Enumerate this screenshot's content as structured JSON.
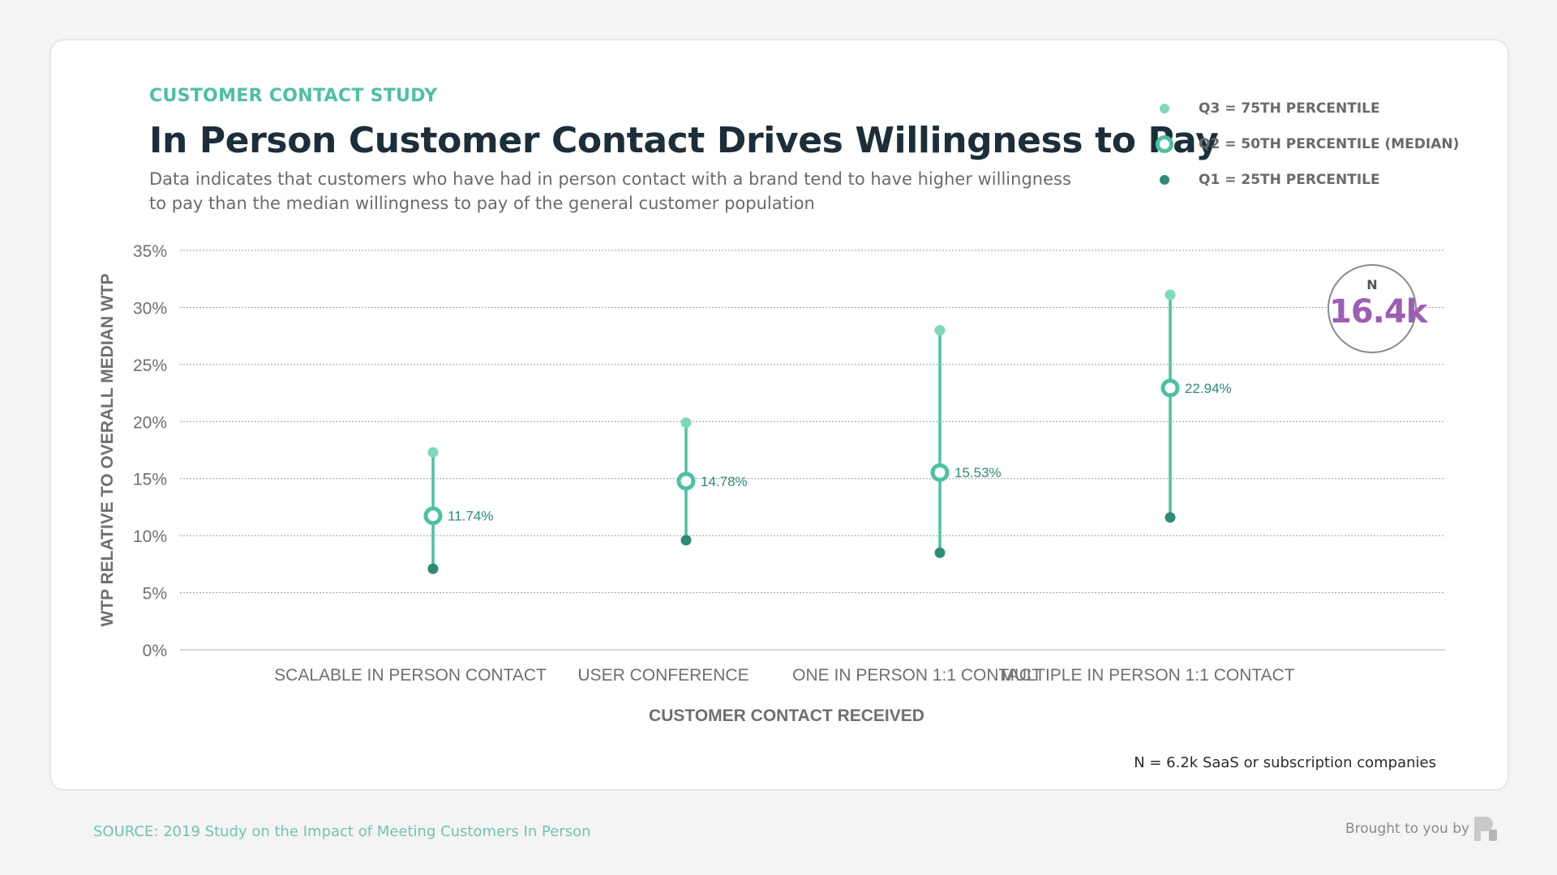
{
  "header": {
    "eyebrow": "CUSTOMER CONTACT STUDY",
    "title": "In Person Customer Contact Drives Willingness to Pay",
    "subtitle": "Data indicates that customers who have had in person contact with a brand tend to have higher willingness to pay than the median willingness to pay of the general customer population"
  },
  "legend": {
    "q3": "Q3 = 75TH PERCENTILE",
    "q2": "Q2 = 50TH PERCENTILE (MEDIAN)",
    "q1": "Q1 = 25TH PERCENTILE"
  },
  "badge": {
    "label": "N",
    "value": "16.4k"
  },
  "note": "N = 6.2k SaaS or subscription companies",
  "footer": {
    "source": "SOURCE: 2019 Study on the Impact of Meeting Customers In Person",
    "brought": "Brought to you by"
  },
  "colors": {
    "q3": "#7fd8bd",
    "q2": "#4dc0a3",
    "q1": "#2e8b75",
    "label": "#2e8b75",
    "accent_purple": "#9b5fb3"
  },
  "chart_data": {
    "type": "range-dot",
    "title": "In Person Customer Contact Drives Willingness to Pay",
    "xlabel": "CUSTOMER CONTACT RECEIVED",
    "ylabel": "WTP RELATIVE TO OVERALL MEDIAN WTP",
    "ylim": [
      0,
      35
    ],
    "yticks": [
      0,
      5,
      10,
      15,
      20,
      25,
      30,
      35
    ],
    "ytick_labels": [
      "0%",
      "5%",
      "10%",
      "15%",
      "20%",
      "25%",
      "30%",
      "35%"
    ],
    "grid": true,
    "categories": [
      "SCALABLE IN PERSON CONTACT",
      "USER CONFERENCE",
      "ONE IN PERSON 1:1 CONTACT",
      "MULTIPLE IN PERSON 1:1 CONTACT"
    ],
    "series": [
      {
        "name": "Q3 = 75TH PERCENTILE",
        "values": [
          17.3,
          19.9,
          28.0,
          31.1
        ]
      },
      {
        "name": "Q2 = 50TH PERCENTILE (MEDIAN)",
        "values": [
          11.74,
          14.78,
          15.53,
          22.94
        ]
      },
      {
        "name": "Q1 = 25TH PERCENTILE",
        "values": [
          7.1,
          9.6,
          8.5,
          11.6
        ]
      }
    ],
    "median_labels": [
      "11.74%",
      "14.78%",
      "15.53%",
      "22.94%"
    ]
  }
}
